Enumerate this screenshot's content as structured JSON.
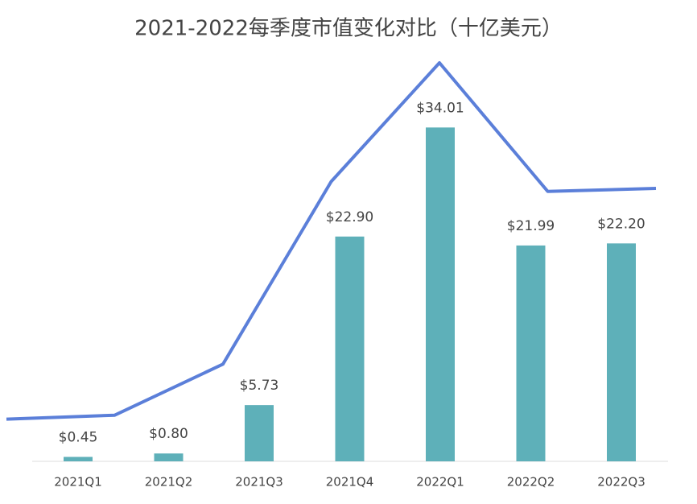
{
  "chart_data": {
    "type": "bar",
    "title": "2021-2022每季度市值变化对比（十亿美元）",
    "categories": [
      "2021Q1",
      "2021Q2",
      "2021Q3",
      "2021Q4",
      "2022Q1",
      "2022Q2",
      "2022Q3"
    ],
    "series": [
      {
        "color": "#5eb0b9",
        "values": [
          0.45,
          0.8,
          5.73,
          22.9,
          34.01,
          21.99,
          22.2
        ],
        "value_labels": [
          "$0.45",
          "$0.80",
          "$5.73",
          "$22.90",
          "$34.01",
          "$21.99",
          "$22.20"
        ]
      },
      {
        "color": "#5b7fd9",
        "values": [
          4.3,
          4.7,
          9.9,
          28.5,
          40.6,
          27.5,
          27.8
        ]
      }
    ]
  }
}
